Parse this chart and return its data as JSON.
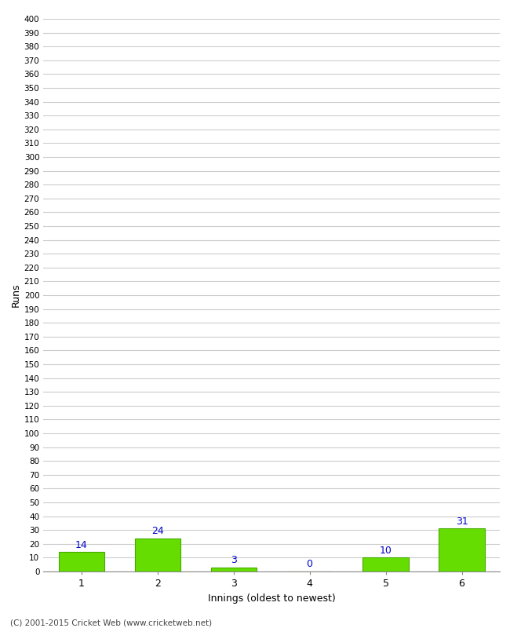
{
  "xlabel": "Innings (oldest to newest)",
  "ylabel": "Runs",
  "categories": [
    "1",
    "2",
    "3",
    "4",
    "5",
    "6"
  ],
  "values": [
    14,
    24,
    3,
    0,
    10,
    31
  ],
  "bar_color": "#66dd00",
  "bar_edge_color": "#44aa00",
  "label_color": "#0000cc",
  "ylim": [
    0,
    400
  ],
  "ytick_step": 10,
  "background_color": "#ffffff",
  "grid_color": "#cccccc",
  "footer": "(C) 2001-2015 Cricket Web (www.cricketweb.net)"
}
